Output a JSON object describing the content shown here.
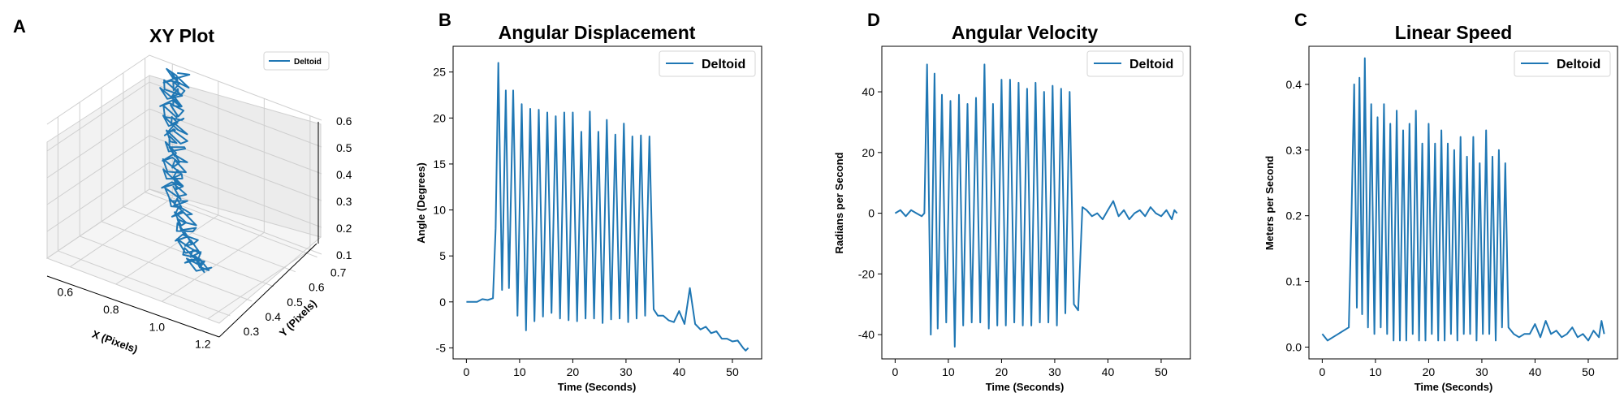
{
  "figure": {
    "series_color": "#1f77b4",
    "panel_letters": [
      "A",
      "B",
      "D",
      "C"
    ]
  },
  "chart_data": [
    {
      "panel": "A",
      "type": "line",
      "projection": "3d",
      "title": "XY Plot",
      "xlabel": "X (Pixels)",
      "ylabel": "Y (Pixels)",
      "zlabel": "",
      "xticks": [
        "0.6",
        "0.8",
        "1.0",
        "1.2"
      ],
      "yticks": [
        "0.3",
        "0.4",
        "0.5",
        "0.6",
        "0.7"
      ],
      "zticks": [
        "0.1",
        "0.2",
        "0.3",
        "0.4",
        "0.5",
        "0.6"
      ],
      "xlim": [
        0.5,
        1.25
      ],
      "ylim": [
        0.25,
        0.72
      ],
      "zlim": [
        0.1,
        0.6
      ],
      "grid": true,
      "legend": {
        "entries": [
          "Deltoid"
        ],
        "placement": "top-right"
      },
      "series": [
        {
          "name": "Deltoid",
          "x": [
            1.1,
            1.07,
            1.02,
            0.98,
            0.94,
            0.9,
            0.86,
            0.83,
            0.8,
            0.77,
            0.74,
            0.71,
            0.68,
            0.66,
            0.64
          ],
          "y": [
            0.32,
            0.34,
            0.36,
            0.38,
            0.41,
            0.43,
            0.46,
            0.49,
            0.52,
            0.55,
            0.58,
            0.61,
            0.64,
            0.67,
            0.7
          ],
          "z": [
            0.22,
            0.22,
            0.24,
            0.27,
            0.3,
            0.33,
            0.36,
            0.39,
            0.42,
            0.46,
            0.49,
            0.52,
            0.55,
            0.57,
            0.59
          ]
        }
      ]
    },
    {
      "panel": "B",
      "type": "line",
      "title": "Angular Displacement",
      "xlabel": "Time (Seconds)",
      "ylabel": "Angle (Degrees)",
      "xlim": [
        -2.5,
        55.5
      ],
      "ylim": [
        -6.2,
        27.8
      ],
      "xticks": [
        0,
        10,
        20,
        30,
        40,
        50
      ],
      "yticks": [
        -5,
        0,
        5,
        10,
        15,
        20,
        25
      ],
      "grid": false,
      "legend": {
        "entries": [
          "Deltoid"
        ],
        "placement": "upper right"
      },
      "series": [
        {
          "name": "Deltoid",
          "x": [
            0,
            1,
            2,
            3,
            4,
            5,
            5.5,
            6,
            6.7,
            7.4,
            8,
            8.8,
            9.6,
            10.4,
            11.2,
            12,
            12.8,
            13.6,
            14.4,
            15.2,
            16,
            16.8,
            17.6,
            18.4,
            19.2,
            20,
            20.8,
            21.6,
            22.4,
            23.2,
            24,
            24.8,
            25.6,
            26.4,
            27.2,
            28,
            28.8,
            29.6,
            30.4,
            31.2,
            32,
            32.8,
            33.6,
            34.4,
            35.2,
            36,
            37,
            38,
            39,
            40,
            41,
            42,
            43,
            44,
            45,
            46,
            47,
            48,
            49,
            50,
            51,
            52,
            52.5,
            53
          ],
          "y": [
            0,
            0,
            0,
            0.3,
            0.2,
            0.4,
            8,
            26,
            1.3,
            23,
            1.5,
            23,
            -1.5,
            21.5,
            -3.1,
            21,
            -2.1,
            20.9,
            -1.6,
            20.6,
            -1.2,
            20.2,
            -1.8,
            20.6,
            -2,
            20.6,
            -2.1,
            18.5,
            -1.8,
            20.7,
            -1.8,
            18.5,
            -2.3,
            19.8,
            -1.9,
            18.2,
            -1.8,
            19.4,
            -2.2,
            18,
            -1.8,
            18.1,
            -1.5,
            18,
            -0.8,
            -1.5,
            -1.5,
            -2,
            -2.2,
            -1,
            -2.4,
            1.5,
            -2.4,
            -3,
            -2.7,
            -3.4,
            -3.2,
            -4,
            -4,
            -4.3,
            -4.2,
            -5,
            -5.3,
            -5
          ]
        }
      ]
    },
    {
      "panel": "D",
      "type": "line",
      "title": "Angular Velocity",
      "xlabel": "Time (Seconds)",
      "ylabel": "Radians per Second",
      "xlim": [
        -2.5,
        55.5
      ],
      "ylim": [
        -48,
        55
      ],
      "xticks": [
        0,
        10,
        20,
        30,
        40,
        50
      ],
      "yticks": [
        -40,
        -20,
        0,
        20,
        40
      ],
      "grid": false,
      "legend": {
        "entries": [
          "Deltoid"
        ],
        "placement": "upper right"
      },
      "series": [
        {
          "name": "Deltoid",
          "x": [
            0,
            1,
            2,
            3,
            4,
            5,
            5.5,
            6,
            6.7,
            7.4,
            8,
            8.8,
            9.6,
            10.4,
            11.2,
            12,
            12.8,
            13.6,
            14.4,
            15.2,
            16,
            16.8,
            17.6,
            18.4,
            19.2,
            20,
            20.8,
            21.6,
            22.4,
            23.2,
            24,
            24.8,
            25.6,
            26.4,
            27.2,
            28,
            28.8,
            29.6,
            30.4,
            31.2,
            32,
            32.8,
            33.6,
            34.4,
            35.2,
            36,
            37,
            38,
            39,
            40,
            41,
            42,
            43,
            44,
            45,
            46,
            47,
            48,
            49,
            50,
            51,
            52,
            52.5,
            53
          ],
          "y": [
            0,
            1,
            -1,
            1,
            0,
            -1,
            0,
            49,
            -40,
            46,
            -38,
            39,
            -36,
            37,
            -44,
            39,
            -37,
            36,
            -36,
            38,
            -36,
            49,
            -38,
            36,
            -37,
            44,
            -37,
            44,
            -36,
            43,
            -37,
            41,
            -37,
            43,
            -36,
            40,
            -36,
            42,
            -37,
            41,
            -33,
            40,
            -30,
            -32,
            2,
            1,
            -1,
            0,
            -2,
            1,
            4,
            -1,
            1,
            -2,
            0,
            1,
            -1,
            2,
            0,
            -1,
            1,
            -2,
            1,
            0
          ]
        }
      ]
    },
    {
      "panel": "C",
      "type": "line",
      "title": "Linear Speed",
      "xlabel": "Time (Seconds)",
      "ylabel": "Meters per Second",
      "xlim": [
        -2.5,
        55.5
      ],
      "ylim": [
        -0.018,
        0.458
      ],
      "xticks": [
        0,
        10,
        20,
        30,
        40,
        50
      ],
      "yticks": [
        0.0,
        0.1,
        0.2,
        0.3,
        0.4
      ],
      "ytick_labels": [
        "0.0",
        "0.1",
        "0.2",
        "0.3",
        "0.4"
      ],
      "grid": false,
      "legend": {
        "entries": [
          "Deltoid"
        ],
        "placement": "upper right"
      },
      "series": [
        {
          "name": "Deltoid",
          "x": [
            0,
            1,
            2,
            3,
            4,
            5,
            5.5,
            6,
            6.5,
            7,
            7.5,
            8,
            8.6,
            9.2,
            9.8,
            10.4,
            11,
            11.6,
            12.2,
            12.8,
            13.4,
            14,
            14.6,
            15.2,
            15.8,
            16.4,
            17,
            17.6,
            18.2,
            18.8,
            19.4,
            20,
            20.6,
            21.2,
            21.8,
            22.4,
            23,
            23.6,
            24.2,
            24.8,
            25.4,
            26,
            26.6,
            27.2,
            27.8,
            28.4,
            29,
            29.6,
            30.2,
            30.8,
            31.4,
            32,
            32.6,
            33.2,
            33.8,
            34.4,
            35,
            36,
            37,
            38,
            39,
            40,
            41,
            42,
            43,
            44,
            45,
            46,
            47,
            48,
            49,
            50,
            51,
            52,
            52.5,
            53
          ],
          "y": [
            0.02,
            0.01,
            0.015,
            0.02,
            0.025,
            0.03,
            0.2,
            0.4,
            0.06,
            0.41,
            0.05,
            0.44,
            0.03,
            0.37,
            0.02,
            0.35,
            0.03,
            0.37,
            0.02,
            0.34,
            0.01,
            0.36,
            0.01,
            0.33,
            0.01,
            0.34,
            0.02,
            0.36,
            0.01,
            0.31,
            0.01,
            0.34,
            0.02,
            0.31,
            0.01,
            0.33,
            0.01,
            0.31,
            0.02,
            0.3,
            0.01,
            0.32,
            0.02,
            0.29,
            0.02,
            0.32,
            0.01,
            0.28,
            0.02,
            0.33,
            0.02,
            0.29,
            0.01,
            0.3,
            0.03,
            0.28,
            0.03,
            0.02,
            0.015,
            0.02,
            0.02,
            0.035,
            0.015,
            0.04,
            0.02,
            0.025,
            0.015,
            0.02,
            0.03,
            0.015,
            0.02,
            0.01,
            0.025,
            0.015,
            0.04,
            0.02
          ]
        }
      ]
    }
  ]
}
